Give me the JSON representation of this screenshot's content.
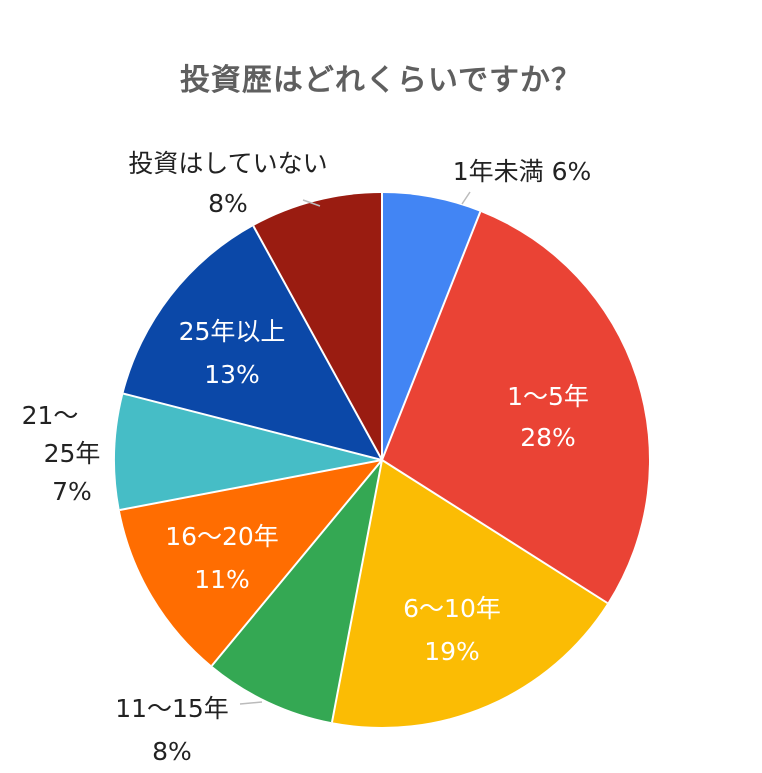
{
  "chart_data": {
    "type": "pie",
    "title": "投資歴はどれくらいですか？",
    "slices": [
      {
        "label": "1年未満",
        "value": 6,
        "pct_label": "6%",
        "color": "#4285f4",
        "label_pos": "outside"
      },
      {
        "label": "1～5年",
        "value": 28,
        "pct_label": "28%",
        "color": "#ea4335",
        "label_pos": "inside"
      },
      {
        "label": "6～10年",
        "value": 19,
        "pct_label": "19%",
        "color": "#fbbc04",
        "label_pos": "inside"
      },
      {
        "label": "11～15年",
        "value": 8,
        "pct_label": "8%",
        "color": "#34a853",
        "label_pos": "outside"
      },
      {
        "label": "16～20年",
        "value": 11,
        "pct_label": "11%",
        "color": "#ff6d01",
        "label_pos": "inside"
      },
      {
        "label": "21～25年",
        "value": 7,
        "pct_label": "7%",
        "color": "#46bdc6",
        "label_pos": "outside"
      },
      {
        "label": "25年以上",
        "value": 13,
        "pct_label": "13%",
        "color": "#0b48a8",
        "label_pos": "inside"
      },
      {
        "label": "投資はしていない",
        "value": 8,
        "pct_label": "8%",
        "color": "#9a1c11",
        "label_pos": "outside"
      }
    ]
  }
}
